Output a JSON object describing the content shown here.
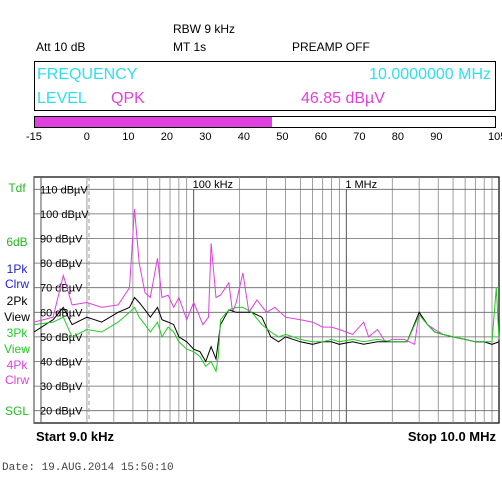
{
  "header": {
    "rbw": "RBW 9 kHz",
    "att": "Att  10 dB",
    "mt": "MT  1s",
    "preamp": "PREAMP OFF"
  },
  "readout": {
    "frequency_label": "FREQUENCY",
    "frequency_value": "10.0000000 MHz",
    "level_label": "LEVEL",
    "detector": "QPK",
    "level_value": "46.85 dBµV"
  },
  "level_bar": {
    "scale": [
      -15,
      0,
      10,
      20,
      30,
      40,
      50,
      60,
      70,
      80,
      90,
      105
    ],
    "value": 46.85,
    "min": -15,
    "max": 105,
    "fill_color": "#e040e0"
  },
  "side_labels": {
    "tdf": "Tdf",
    "six_db": "6dB",
    "t1_num": "1Pk",
    "t1_mode": "Clrw",
    "t2_num": "2Pk",
    "t2_mode": "View",
    "t3_num": "3Pk",
    "t3_mode": "View",
    "t4_num": "4Pk",
    "t4_mode": "Clrw",
    "sgl": "SGL",
    "colors": {
      "tdf": "#22bb22",
      "t1": "#2222dd",
      "t2": "#000000",
      "t3": "#22cc22",
      "t4": "#e040e0"
    }
  },
  "footer": {
    "start": "Start 9.0 kHz",
    "stop": "Stop 10.0 MHz",
    "date": "Date: 19.AUG.2014  15:50:10"
  },
  "chart_data": {
    "type": "line",
    "xscale": "log",
    "xlim_hz": [
      9000,
      10000000
    ],
    "ylim": [
      15,
      115
    ],
    "yunit": "dBµV",
    "yticks": [
      20,
      30,
      40,
      50,
      60,
      70,
      80,
      90,
      100,
      110
    ],
    "ytick_labels": [
      "20 dBµV",
      "30 dBµV",
      "40 dBµV",
      "50 dBµV",
      "60 dBµV",
      "70 dBµV",
      "80 dBµV",
      "90 dBµV",
      "100 dBµV",
      "110 dBµV"
    ],
    "xtick_labels": [
      {
        "hz": 100000,
        "label": "100 kHz"
      },
      {
        "hz": 1000000,
        "label": "1 MHz"
      }
    ],
    "grid": true,
    "series": [
      {
        "color": "#e040e0",
        "points": [
          [
            9000,
            56
          ],
          [
            12000,
            58
          ],
          [
            14000,
            75
          ],
          [
            16000,
            63
          ],
          [
            20000,
            64
          ],
          [
            25000,
            62
          ],
          [
            32000,
            63
          ],
          [
            38000,
            70
          ],
          [
            41000,
            102
          ],
          [
            44000,
            80
          ],
          [
            48000,
            68
          ],
          [
            52000,
            66
          ],
          [
            58000,
            82
          ],
          [
            62000,
            66
          ],
          [
            68000,
            67
          ],
          [
            74000,
            62
          ],
          [
            80000,
            66
          ],
          [
            90000,
            57
          ],
          [
            100000,
            64
          ],
          [
            115000,
            55
          ],
          [
            125000,
            58
          ],
          [
            130000,
            88
          ],
          [
            140000,
            66
          ],
          [
            150000,
            67
          ],
          [
            170000,
            72
          ],
          [
            180000,
            60
          ],
          [
            190000,
            64
          ],
          [
            210000,
            76
          ],
          [
            230000,
            60
          ],
          [
            260000,
            65
          ],
          [
            300000,
            60
          ],
          [
            340000,
            62
          ],
          [
            400000,
            58
          ],
          [
            500000,
            57
          ],
          [
            600000,
            56
          ],
          [
            700000,
            54
          ],
          [
            800000,
            54
          ],
          [
            900000,
            53
          ],
          [
            1100000,
            51
          ],
          [
            1300000,
            56
          ],
          [
            1400000,
            50
          ],
          [
            1600000,
            53
          ],
          [
            1800000,
            48
          ],
          [
            2000000,
            49
          ],
          [
            2400000,
            49
          ],
          [
            2800000,
            47
          ],
          [
            3000000,
            60
          ],
          [
            3400000,
            55
          ],
          [
            3800000,
            53
          ],
          [
            4300000,
            51
          ],
          [
            5000000,
            50
          ],
          [
            6000000,
            49
          ],
          [
            7000000,
            48
          ],
          [
            8000000,
            48
          ],
          [
            9000000,
            47
          ],
          [
            10000000,
            48
          ]
        ]
      },
      {
        "color": "#000000",
        "points": [
          [
            9000,
            52
          ],
          [
            12000,
            57
          ],
          [
            14000,
            62
          ],
          [
            16000,
            55
          ],
          [
            20000,
            58
          ],
          [
            25000,
            56
          ],
          [
            32000,
            60
          ],
          [
            38000,
            62
          ],
          [
            41000,
            66
          ],
          [
            44000,
            64
          ],
          [
            48000,
            61
          ],
          [
            52000,
            58
          ],
          [
            58000,
            62
          ],
          [
            62000,
            57
          ],
          [
            68000,
            56
          ],
          [
            74000,
            55
          ],
          [
            80000,
            50
          ],
          [
            90000,
            48
          ],
          [
            100000,
            45
          ],
          [
            110000,
            44
          ],
          [
            120000,
            40
          ],
          [
            130000,
            46
          ],
          [
            140000,
            41
          ],
          [
            150000,
            55
          ],
          [
            170000,
            61
          ],
          [
            190000,
            60
          ],
          [
            210000,
            60
          ],
          [
            240000,
            60
          ],
          [
            280000,
            58
          ],
          [
            320000,
            50
          ],
          [
            360000,
            48
          ],
          [
            400000,
            50
          ],
          [
            500000,
            48
          ],
          [
            600000,
            47
          ],
          [
            700000,
            48
          ],
          [
            800000,
            48
          ],
          [
            900000,
            47
          ],
          [
            1100000,
            48
          ],
          [
            1300000,
            47
          ],
          [
            1600000,
            48
          ],
          [
            2000000,
            48
          ],
          [
            2500000,
            48
          ],
          [
            3000000,
            60
          ],
          [
            3400000,
            55
          ],
          [
            3800000,
            52
          ],
          [
            4300000,
            51
          ],
          [
            5000000,
            50
          ],
          [
            6000000,
            49
          ],
          [
            7000000,
            48
          ],
          [
            8000000,
            48
          ],
          [
            9000000,
            47
          ],
          [
            10000000,
            48
          ]
        ]
      },
      {
        "color": "#22cc22",
        "points": [
          [
            9000,
            55
          ],
          [
            12000,
            56
          ],
          [
            14000,
            58
          ],
          [
            16000,
            50
          ],
          [
            20000,
            53
          ],
          [
            25000,
            52
          ],
          [
            32000,
            56
          ],
          [
            38000,
            60
          ],
          [
            41000,
            62
          ],
          [
            44000,
            58
          ],
          [
            48000,
            55
          ],
          [
            52000,
            52
          ],
          [
            58000,
            56
          ],
          [
            62000,
            50
          ],
          [
            68000,
            54
          ],
          [
            74000,
            52
          ],
          [
            80000,
            48
          ],
          [
            90000,
            45
          ],
          [
            100000,
            44
          ],
          [
            110000,
            42
          ],
          [
            120000,
            38
          ],
          [
            130000,
            40
          ],
          [
            140000,
            36
          ],
          [
            145000,
            42
          ],
          [
            150000,
            57
          ],
          [
            170000,
            61
          ],
          [
            190000,
            62
          ],
          [
            210000,
            62
          ],
          [
            240000,
            60
          ],
          [
            280000,
            55
          ],
          [
            320000,
            52
          ],
          [
            360000,
            50
          ],
          [
            400000,
            51
          ],
          [
            500000,
            49
          ],
          [
            600000,
            48
          ],
          [
            700000,
            48
          ],
          [
            800000,
            49
          ],
          [
            900000,
            48
          ],
          [
            1100000,
            49
          ],
          [
            1300000,
            48
          ],
          [
            1600000,
            49
          ],
          [
            2000000,
            48
          ],
          [
            2500000,
            48
          ],
          [
            3000000,
            59
          ],
          [
            3400000,
            55
          ],
          [
            3800000,
            52
          ],
          [
            4300000,
            51
          ],
          [
            5000000,
            50
          ],
          [
            6000000,
            49
          ],
          [
            7000000,
            48
          ],
          [
            8000000,
            48
          ],
          [
            9000000,
            48
          ],
          [
            9600000,
            70
          ],
          [
            10000000,
            49
          ]
        ]
      }
    ]
  }
}
